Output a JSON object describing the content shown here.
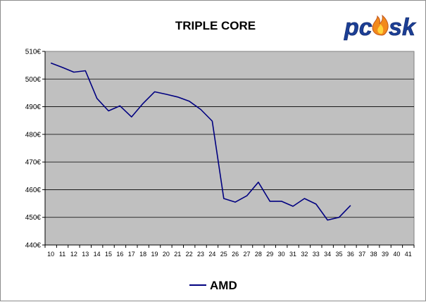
{
  "chart_data": {
    "type": "line",
    "title": "TRIPLE CORE",
    "xlabel": "",
    "ylabel": "",
    "x": [
      10,
      11,
      12,
      13,
      14,
      15,
      16,
      17,
      18,
      19,
      20,
      21,
      22,
      23,
      24,
      25,
      26,
      27,
      28,
      29,
      30,
      31,
      32,
      33,
      34,
      35,
      36,
      37,
      38,
      39,
      40,
      41
    ],
    "ylim": [
      440,
      510
    ],
    "yticks": [
      440,
      450,
      460,
      470,
      480,
      490,
      500,
      510
    ],
    "y_unit": "€",
    "series": [
      {
        "name": "AMD",
        "color": "#000080",
        "values": [
          505.8,
          504.2,
          502.5,
          503.0,
          493.0,
          488.5,
          490.3,
          486.3,
          491.2,
          495.4,
          494.5,
          493.5,
          492.0,
          489.0,
          484.8,
          456.8,
          455.5,
          457.8,
          462.7,
          455.8,
          455.8,
          454.0,
          456.8,
          454.8,
          449.0,
          450.0,
          454.3,
          null,
          null,
          null,
          null,
          null
        ]
      }
    ],
    "grid": "horizontal",
    "legend_position": "bottom",
    "plot_background": "#c0c0c0"
  },
  "logo": {
    "text": "pcask",
    "color": "#1c3f95",
    "flame_color": "#f28a1c"
  }
}
